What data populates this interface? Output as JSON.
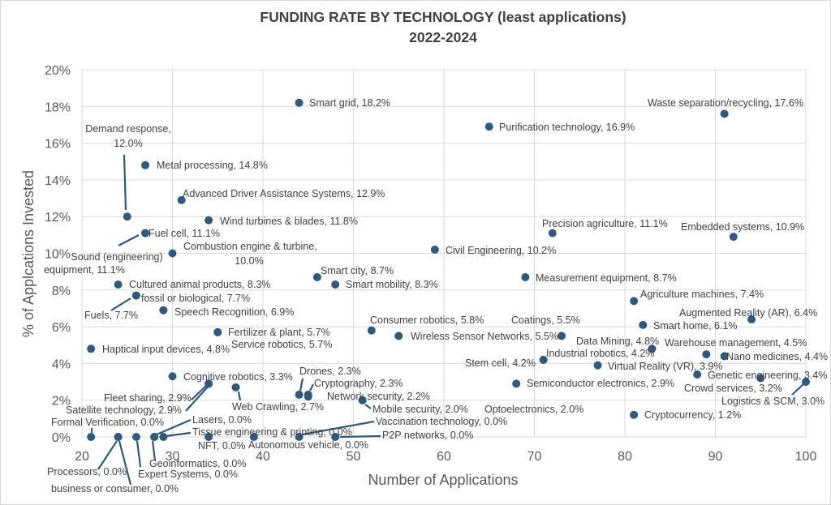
{
  "chart_data": {
    "type": "scatter",
    "title": "FUNDING RATE BY TECHNOLOGY (least applications)",
    "subtitle": "2022-2024",
    "xlabel": "Number of Applications",
    "ylabel": "% of Applcations Invested",
    "xlim": [
      20,
      100
    ],
    "ylim": [
      0,
      20
    ],
    "x_ticks": [
      "20",
      "30",
      "40",
      "50",
      "60",
      "70",
      "80",
      "90",
      "100"
    ],
    "y_ticks": [
      "0%",
      "2%",
      "4%",
      "6%",
      "8%",
      "10%",
      "12%",
      "14%",
      "16%",
      "18%",
      "20%"
    ],
    "grid": true,
    "marker_color": "#2f5a7e",
    "points": [
      {
        "label": "Smart grid, 18.2%",
        "x": 44,
        "y": 18.2
      },
      {
        "label": "Purification technology, 16.9%",
        "x": 65,
        "y": 16.9
      },
      {
        "label": "Waste separation/recycling, 17.6%",
        "x": 91,
        "y": 17.6
      },
      {
        "label": "Demand response,\n12.0%",
        "x": 25,
        "y": 12.0
      },
      {
        "label": "Metal processing, 14.8%",
        "x": 27,
        "y": 14.8
      },
      {
        "label": "Advanced Driver Assistance Systems, 12.9%",
        "x": 31,
        "y": 12.9
      },
      {
        "label": "Wind turbines & blades, 11.8%",
        "x": 34,
        "y": 11.8
      },
      {
        "label": "Fuel cell, 11.1%",
        "x": 27,
        "y": 11.1
      },
      {
        "label": "Sound (engineering)\nequipment, 11.1%",
        "x": 27,
        "y": 11.1
      },
      {
        "label": "Combustion engine & turbine,\n10.0%",
        "x": 30,
        "y": 10.0
      },
      {
        "label": "Cultured animal products, 8.3%",
        "x": 24,
        "y": 8.3
      },
      {
        "label": "fossil or biological, 7.7%",
        "x": 26,
        "y": 7.7
      },
      {
        "label": "Fuels, 7.7%",
        "x": 26,
        "y": 7.7
      },
      {
        "label": "Speech Recognition, 6.9%",
        "x": 29,
        "y": 6.9
      },
      {
        "label": "Fertilizer & plant, 5.7%",
        "x": 35,
        "y": 5.7
      },
      {
        "label": "Service robotics, 5.7%",
        "x": 35,
        "y": 5.7
      },
      {
        "label": "Haptical input devices, 4.8%",
        "x": 21,
        "y": 4.8
      },
      {
        "label": "Smart city, 8.7%",
        "x": 46,
        "y": 8.7
      },
      {
        "label": "Smart mobility, 8.3%",
        "x": 48,
        "y": 8.3
      },
      {
        "label": "Civil Engineering, 10.2%",
        "x": 59,
        "y": 10.2
      },
      {
        "label": "Precision agriculture, 11.1%",
        "x": 72,
        "y": 11.1
      },
      {
        "label": "Embedded systems, 10.9%",
        "x": 92,
        "y": 10.9
      },
      {
        "label": "Measurement equipment, 8.7%",
        "x": 69,
        "y": 8.7
      },
      {
        "label": "Agriculture machines, 7.4%",
        "x": 81,
        "y": 7.4
      },
      {
        "label": "Augmented Reality (AR), 6.4%",
        "x": 94,
        "y": 6.4
      },
      {
        "label": "Smart home, 6.1%",
        "x": 82,
        "y": 6.1
      },
      {
        "label": "Consumer robotics, 5.8%",
        "x": 52,
        "y": 5.8
      },
      {
        "label": "Wireless Sensor Networks, 5.5%",
        "x": 55,
        "y": 5.5
      },
      {
        "label": "Coatings, 5.5%",
        "x": 73,
        "y": 5.5
      },
      {
        "label": "Data Mining, 4.8%",
        "x": 83,
        "y": 4.8
      },
      {
        "label": "Warehouse management, 4.5%",
        "x": 89,
        "y": 4.5
      },
      {
        "label": "Nano medicines, 4.4%",
        "x": 91,
        "y": 4.4
      },
      {
        "label": "Industrial robotics, 4.2%",
        "x": 71,
        "y": 4.2
      },
      {
        "label": "Stem cell, 4.2%",
        "x": 71,
        "y": 4.2
      },
      {
        "label": "Virtual Reality (VR), 3.9%",
        "x": 77,
        "y": 3.9
      },
      {
        "label": "Genetic engineering, 3.4%",
        "x": 88,
        "y": 3.4
      },
      {
        "label": "Crowd services, 3.2%",
        "x": 95,
        "y": 3.2
      },
      {
        "label": "Logistics & SCM, 3.0%",
        "x": 100,
        "y": 3.0
      },
      {
        "label": "Semiconductor electronics, 2.9%",
        "x": 68,
        "y": 2.9
      },
      {
        "label": "Cryptocurrency, 1.2%",
        "x": 81,
        "y": 1.2
      },
      {
        "label": "Cognitive robotics, 3.3%",
        "x": 30,
        "y": 3.3
      },
      {
        "label": "Fleet sharing, 2.9%",
        "x": 34,
        "y": 2.9
      },
      {
        "label": "Satellite technology, 2.9%",
        "x": 34,
        "y": 2.9
      },
      {
        "label": "Web Crawling, 2.7%",
        "x": 37,
        "y": 2.7
      },
      {
        "label": "Drones, 2.3%",
        "x": 44,
        "y": 2.3
      },
      {
        "label": "Cryptography, 2.3%",
        "x": 45,
        "y": 2.3
      },
      {
        "label": "Network security, 2.2%",
        "x": 45,
        "y": 2.2
      },
      {
        "label": "Mobile security, 2.0%",
        "x": 51,
        "y": 2.0
      },
      {
        "label": "Optoelectronics, 2.0%",
        "x": 51,
        "y": 2.0
      },
      {
        "label": "Formal Verification, 0.0%",
        "x": 21,
        "y": 0.0
      },
      {
        "label": "Processors, 0.0%",
        "x": 24,
        "y": 0.0
      },
      {
        "label": "business or consumer, 0.0%",
        "x": 24,
        "y": 0.0
      },
      {
        "label": "Expert Systems, 0.0%",
        "x": 26,
        "y": 0.0
      },
      {
        "label": "Geoinformatics, 0.0%",
        "x": 28,
        "y": 0.0
      },
      {
        "label": "Lasers, 0.0%",
        "x": 28,
        "y": 0.0
      },
      {
        "label": "Tissue engineering & printing, 0.0%",
        "x": 29,
        "y": 0.0
      },
      {
        "label": "NFT, 0.0%",
        "x": 34,
        "y": 0.0
      },
      {
        "label": "Autonomous vehicle, 0.0%",
        "x": 39,
        "y": 0.0
      },
      {
        "label": "Vaccination technology, 0.0%",
        "x": 44,
        "y": 0.0
      },
      {
        "label": "P2P networks, 0.0%",
        "x": 48,
        "y": 0.0
      }
    ]
  }
}
